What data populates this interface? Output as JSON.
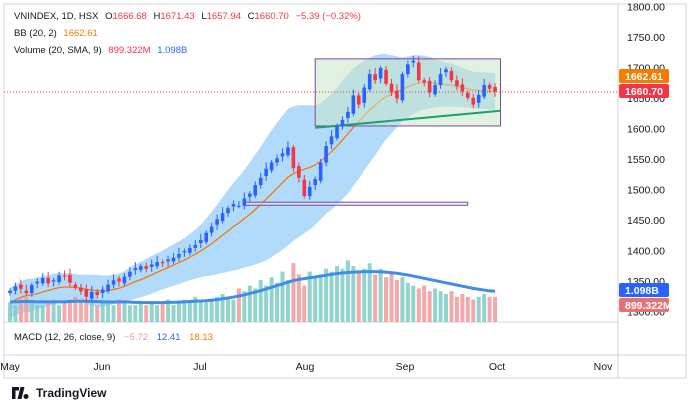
{
  "header": {
    "symbol_line": "VNINDEX, 1D, HSX",
    "open_label": "O",
    "open": "1666.68",
    "high_label": "H",
    "high": "1671.43",
    "low_label": "L",
    "low": "1657.94",
    "close_label": "C",
    "close": "1660.70",
    "change": "−5.39 (−0.32%)",
    "bb_label": "BB (20, 2)",
    "bb_value": "1662.61",
    "vol_label": "Volume (20, SMA, 9)",
    "vol_value": "899.322M",
    "vol_sma": "1.098B"
  },
  "macd_legend": {
    "label": "MACD (12, 26, close, 9)",
    "v1": "−5.72",
    "v2": "12.41",
    "v3": "18.13"
  },
  "brand": {
    "name": "TradingView"
  },
  "colors": {
    "up": "#2962ff",
    "down": "#f23645",
    "bb_basis": "#f57c00",
    "bb_band": "#90caf9",
    "vol_up": "#80cbc4",
    "vol_down": "#ef9a9a",
    "vol_sma": "#3f8ee6",
    "rect_fill": "#c8e6c9",
    "trend": "#1b9e77",
    "macd_line": "#f57c00",
    "macd_signal": "#2196f3"
  },
  "chart_data": {
    "type": "candlestick",
    "title": "VNINDEX, 1D, HSX",
    "ylim": [
      1300,
      1800
    ],
    "y_ticks": [
      "1800.00",
      "1750.00",
      "1700.00",
      "1650.00",
      "1600.00",
      "1550.00",
      "1500.00",
      "1450.00",
      "1400.00",
      "1350.00",
      "1300.00"
    ],
    "x_ticks": [
      "May",
      "Jun",
      "Jul",
      "Aug",
      "Sep",
      "Oct",
      "Nov"
    ],
    "price_labels": {
      "bb_basis": "1662.61",
      "last": "1660.70",
      "vol_sma": "1.098B",
      "vol": "899.322M"
    },
    "ohlc_close": [
      1335,
      1342,
      1338,
      1331,
      1344,
      1350,
      1356,
      1347,
      1352,
      1360,
      1358,
      1348,
      1340,
      1334,
      1325,
      1333,
      1328,
      1337,
      1345,
      1352,
      1350,
      1358,
      1366,
      1372,
      1375,
      1371,
      1378,
      1382,
      1380,
      1386,
      1389,
      1395,
      1400,
      1405,
      1410,
      1418,
      1430,
      1440,
      1452,
      1462,
      1470,
      1477,
      1474,
      1486,
      1494,
      1508,
      1520,
      1535,
      1545,
      1552,
      1560,
      1570,
      1536,
      1520,
      1490,
      1505,
      1518,
      1545,
      1572,
      1588,
      1605,
      1615,
      1628,
      1655,
      1640,
      1668,
      1690,
      1680,
      1700,
      1674,
      1660,
      1650,
      1690,
      1706,
      1712,
      1680,
      1676,
      1660,
      1672,
      1690,
      1698,
      1680,
      1670,
      1662,
      1651,
      1640,
      1656,
      1672,
      1666,
      1661
    ],
    "bb_basis_series": [
      1315,
      1320,
      1324,
      1327,
      1328,
      1330,
      1333,
      1335,
      1338,
      1340,
      1341,
      1341,
      1340,
      1339,
      1337,
      1336,
      1335,
      1334,
      1335,
      1337,
      1339,
      1342,
      1346,
      1350,
      1353,
      1357,
      1361,
      1365,
      1369,
      1373,
      1377,
      1381,
      1385,
      1390,
      1395,
      1400,
      1406,
      1412,
      1419,
      1426,
      1433,
      1440,
      1446,
      1453,
      1460,
      1468,
      1476,
      1485,
      1494,
      1503,
      1512,
      1521,
      1527,
      1531,
      1534,
      1537,
      1541,
      1547,
      1555,
      1563,
      1572,
      1582,
      1592,
      1603,
      1612,
      1622,
      1631,
      1639,
      1647,
      1653,
      1657,
      1661,
      1665,
      1669,
      1673,
      1675,
      1676,
      1676,
      1675,
      1674,
      1673,
      1672,
      1670,
      1668,
      1666,
      1664,
      1663,
      1663,
      1662,
      1662
    ],
    "bb_band_width": [
      25,
      25,
      26,
      27,
      27,
      26,
      26,
      25,
      25,
      24,
      23,
      23,
      22,
      22,
      24,
      25,
      26,
      26,
      25,
      24,
      24,
      25,
      27,
      28,
      29,
      30,
      31,
      31,
      32,
      33,
      34,
      35,
      36,
      38,
      40,
      43,
      47,
      52,
      57,
      62,
      67,
      72,
      76,
      80,
      85,
      90,
      95,
      100,
      104,
      107,
      110,
      112,
      110,
      108,
      105,
      102,
      98,
      95,
      94,
      95,
      96,
      97,
      98,
      96,
      94,
      90,
      86,
      82,
      76,
      70,
      64,
      58,
      52,
      50,
      48,
      46,
      44,
      42,
      40,
      38,
      36,
      35,
      34,
      32,
      31,
      30,
      30,
      30,
      30,
      30
    ],
    "volume": [
      0.7,
      0.6,
      0.8,
      0.9,
      0.7,
      0.6,
      0.6,
      0.7,
      0.8,
      0.6,
      0.7,
      0.8,
      0.9,
      0.8,
      0.7,
      0.7,
      0.6,
      0.7,
      0.7,
      0.6,
      0.8,
      0.7,
      0.6,
      0.6,
      0.7,
      0.6,
      0.7,
      0.6,
      0.7,
      0.8,
      0.6,
      0.7,
      0.8,
      0.7,
      0.9,
      0.8,
      0.7,
      0.8,
      0.9,
      1.0,
      0.9,
      0.8,
      1.2,
      1.1,
      1.3,
      1.2,
      1.5,
      1.3,
      1.6,
      1.4,
      1.8,
      1.5,
      2.1,
      1.7,
      1.3,
      1.8,
      1.6,
      1.7,
      1.9,
      1.8,
      2.0,
      1.9,
      2.2,
      2.0,
      1.8,
      1.9,
      2.1,
      1.7,
      1.9,
      1.6,
      1.8,
      1.5,
      1.6,
      1.4,
      1.3,
      1.2,
      1.3,
      1.1,
      1.2,
      1.1,
      1.0,
      1.1,
      0.9,
      1.0,
      0.9,
      0.8,
      0.9,
      1.0,
      0.9,
      0.9
    ],
    "volume_sma": [
      0.72,
      0.72,
      0.73,
      0.73,
      0.73,
      0.72,
      0.72,
      0.72,
      0.72,
      0.72,
      0.72,
      0.73,
      0.74,
      0.74,
      0.74,
      0.73,
      0.73,
      0.72,
      0.72,
      0.71,
      0.72,
      0.72,
      0.71,
      0.7,
      0.7,
      0.69,
      0.69,
      0.69,
      0.69,
      0.7,
      0.7,
      0.71,
      0.72,
      0.73,
      0.74,
      0.75,
      0.76,
      0.78,
      0.8,
      0.83,
      0.86,
      0.89,
      0.93,
      0.97,
      1.02,
      1.07,
      1.12,
      1.18,
      1.24,
      1.3,
      1.36,
      1.42,
      1.48,
      1.52,
      1.55,
      1.58,
      1.61,
      1.64,
      1.67,
      1.7,
      1.73,
      1.75,
      1.77,
      1.78,
      1.79,
      1.8,
      1.8,
      1.8,
      1.79,
      1.78,
      1.76,
      1.74,
      1.71,
      1.68,
      1.64,
      1.6,
      1.56,
      1.52,
      1.48,
      1.44,
      1.4,
      1.36,
      1.32,
      1.28,
      1.24,
      1.2,
      1.17,
      1.14,
      1.11,
      1.1
    ],
    "annotations": [
      {
        "type": "rectangle",
        "x0": 56,
        "x1": 90,
        "y0": 1605,
        "y1": 1715
      },
      {
        "type": "rectangle",
        "x0": 43,
        "x1": 84,
        "y0": 1475,
        "y1": 1480
      },
      {
        "type": "trendline",
        "x0": 56,
        "y0": 1602,
        "x1": 90,
        "y1": 1630
      },
      {
        "type": "hline",
        "y": 1660.7
      }
    ]
  }
}
